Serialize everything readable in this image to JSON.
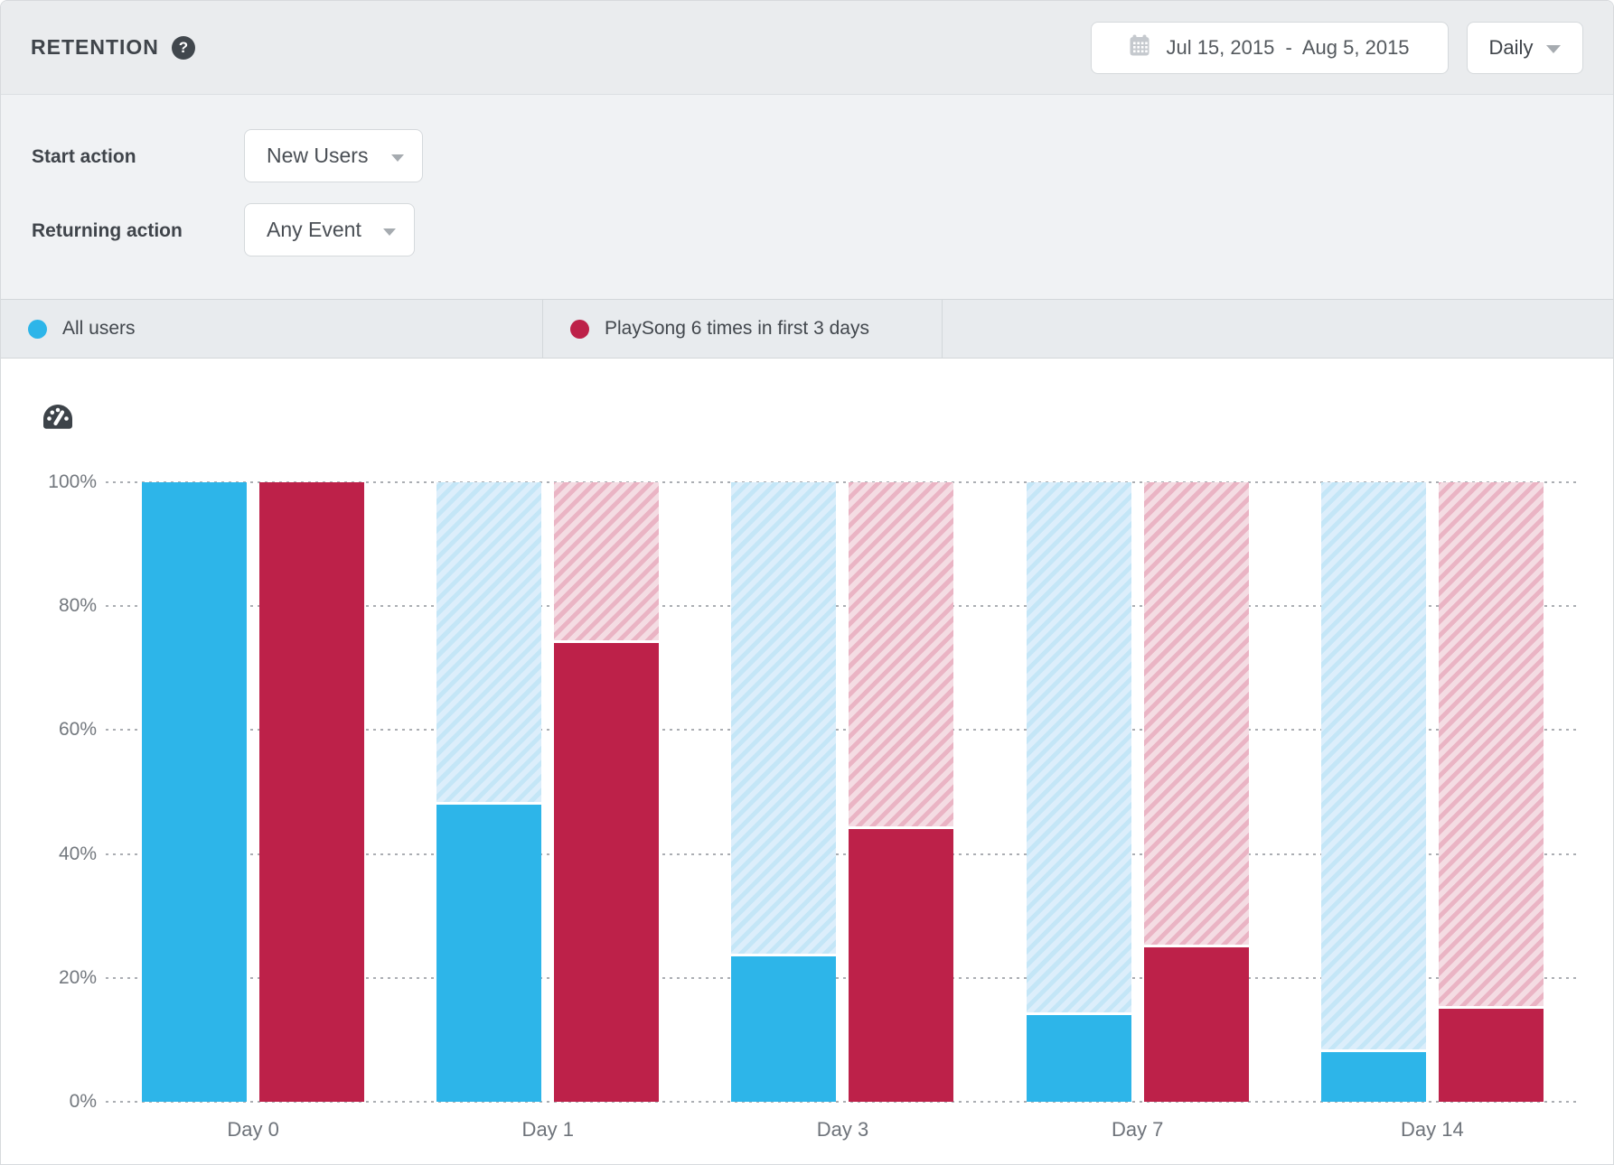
{
  "header": {
    "title": "RETENTION",
    "date_range": "Jul 15, 2015  -  Aug 5, 2015",
    "granularity": "Daily"
  },
  "icons": {
    "help_glyph": "?"
  },
  "filters": {
    "start_action": {
      "label": "Start action",
      "value": "New Users"
    },
    "returning_action": {
      "label": "Returning action",
      "value": "Any Event"
    }
  },
  "legend": {
    "items": [
      {
        "label": "All users",
        "color": "#2db5e9"
      },
      {
        "label": "PlaySong 6 times in first 3 days",
        "color": "#bd2149"
      }
    ]
  },
  "chart_data": {
    "type": "bar",
    "categories": [
      "Day 0",
      "Day 1",
      "Day 3",
      "Day 7",
      "Day 14"
    ],
    "series": [
      {
        "name": "All users",
        "color": "#2db5e9",
        "hatch_base": "#dceefb",
        "hatch_stripe": "#c4e6f7",
        "values": [
          100,
          48,
          23.5,
          14,
          8
        ]
      },
      {
        "name": "PlaySong 6 times in first 3 days",
        "color": "#bd2149",
        "hatch_base": "#f4dce3",
        "hatch_stripe": "#eab4c4",
        "values": [
          100,
          74,
          44,
          25,
          15
        ]
      }
    ],
    "y_ticks": [
      100,
      80,
      60,
      40,
      20,
      0
    ],
    "y_tick_suffix": "%",
    "ylim": [
      0,
      100
    ],
    "grid": "dotted-horizontal",
    "legend_position": "top",
    "gridline_color": "#abaeb3"
  }
}
